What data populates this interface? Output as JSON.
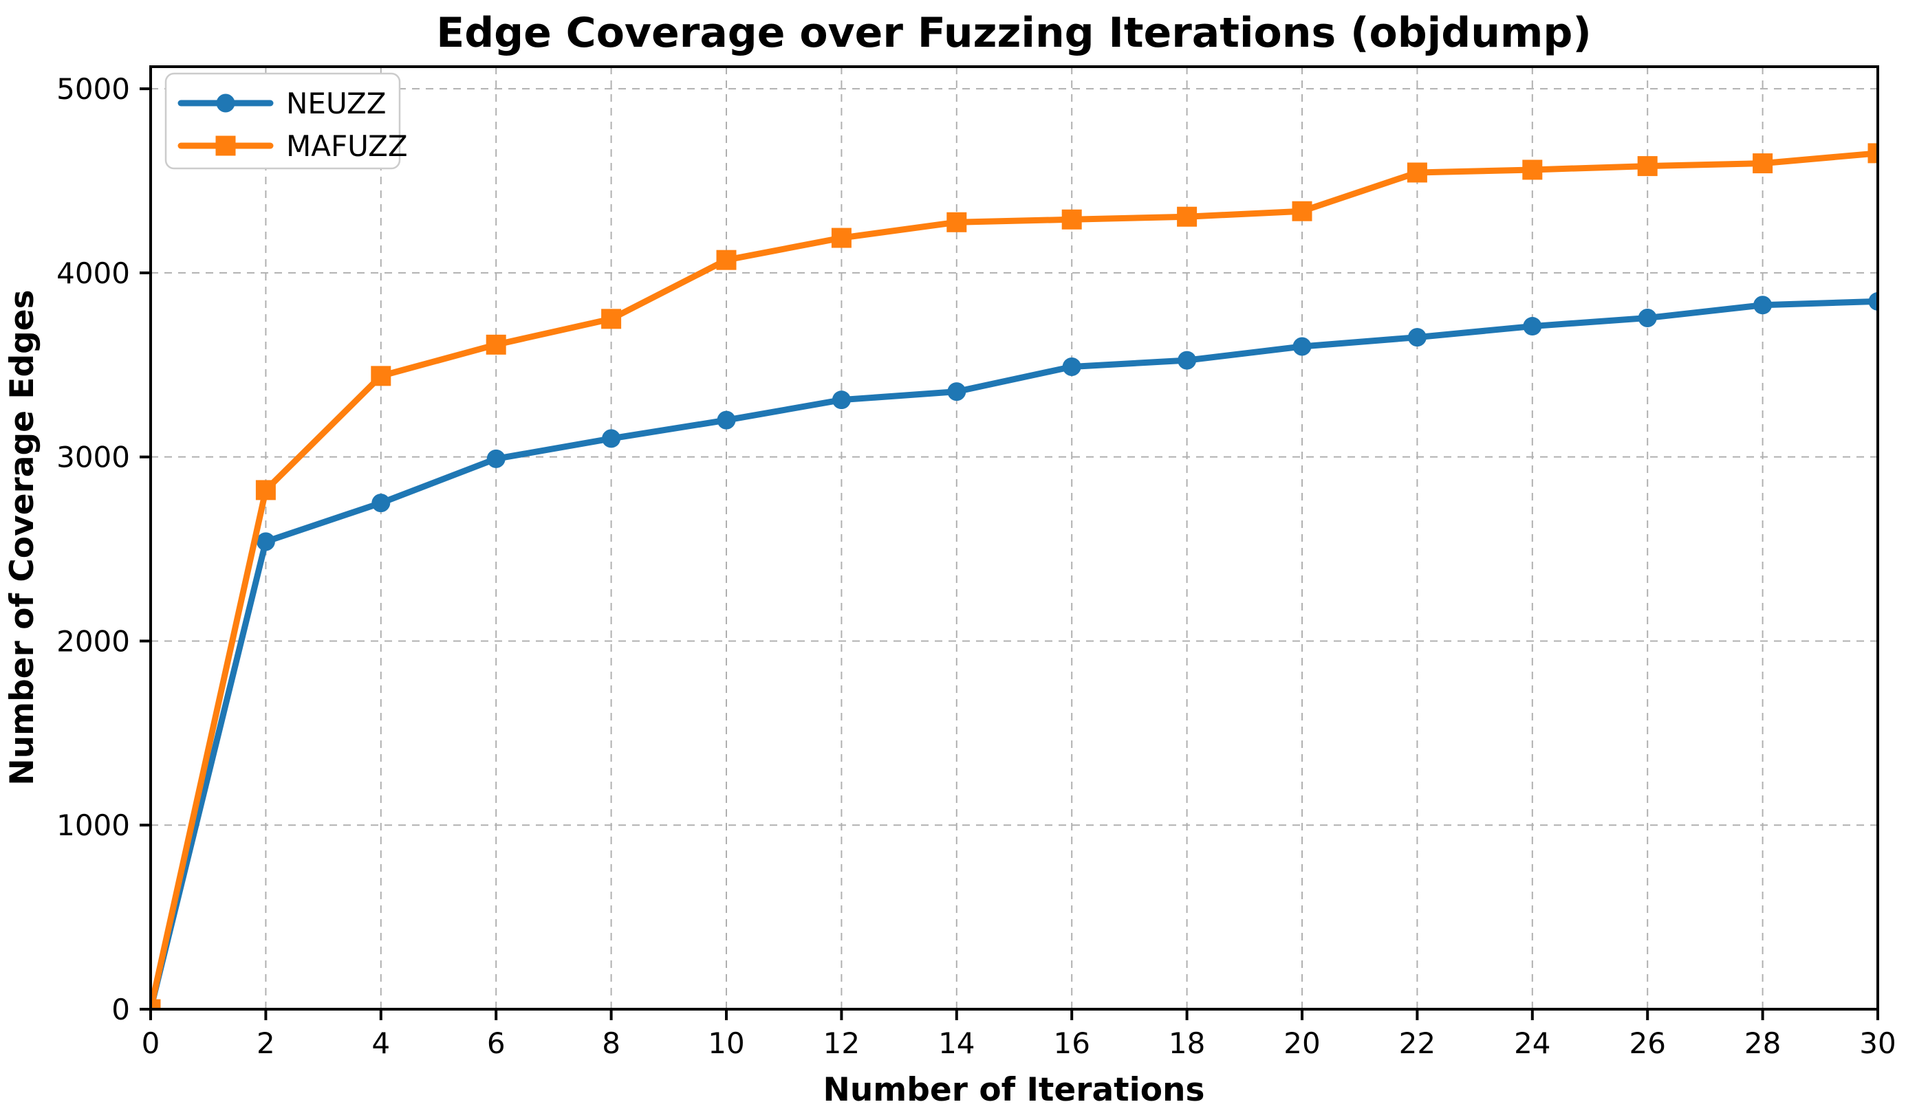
{
  "chart_data": {
    "type": "line",
    "title": "Edge Coverage over Fuzzing Iterations (objdump)",
    "xlabel": "Number of Iterations",
    "ylabel": "Number of Coverage Edges",
    "x": [
      0,
      2,
      4,
      6,
      8,
      10,
      12,
      14,
      16,
      18,
      20,
      22,
      24,
      26,
      28,
      30
    ],
    "series": [
      {
        "name": "NEUZZ",
        "color": "#1f77b4",
        "marker": "circle",
        "values": [
          0,
          2540,
          2750,
          2990,
          3100,
          3200,
          3310,
          3355,
          3490,
          3525,
          3600,
          3650,
          3710,
          3755,
          3825,
          3845
        ]
      },
      {
        "name": "MAFUZZ",
        "color": "#ff7f0e",
        "marker": "square",
        "values": [
          0,
          2820,
          3440,
          3610,
          3750,
          4070,
          4190,
          4275,
          4290,
          4305,
          4335,
          4545,
          4560,
          4580,
          4595,
          4650
        ]
      }
    ],
    "xlim": [
      0,
      30
    ],
    "ylim": [
      0,
      5120
    ],
    "xticks": [
      0,
      2,
      4,
      6,
      8,
      10,
      12,
      14,
      16,
      18,
      20,
      22,
      24,
      26,
      28,
      30
    ],
    "yticks": [
      0,
      1000,
      2000,
      3000,
      4000,
      5000
    ],
    "grid": true,
    "grid_style": "dashed",
    "grid_color": "#b0b0b0",
    "spine_color": "#000000",
    "background_color": "#ffffff",
    "legend_position": "upper-left",
    "legend_entries": [
      "NEUZZ",
      "MAFUZZ"
    ]
  }
}
